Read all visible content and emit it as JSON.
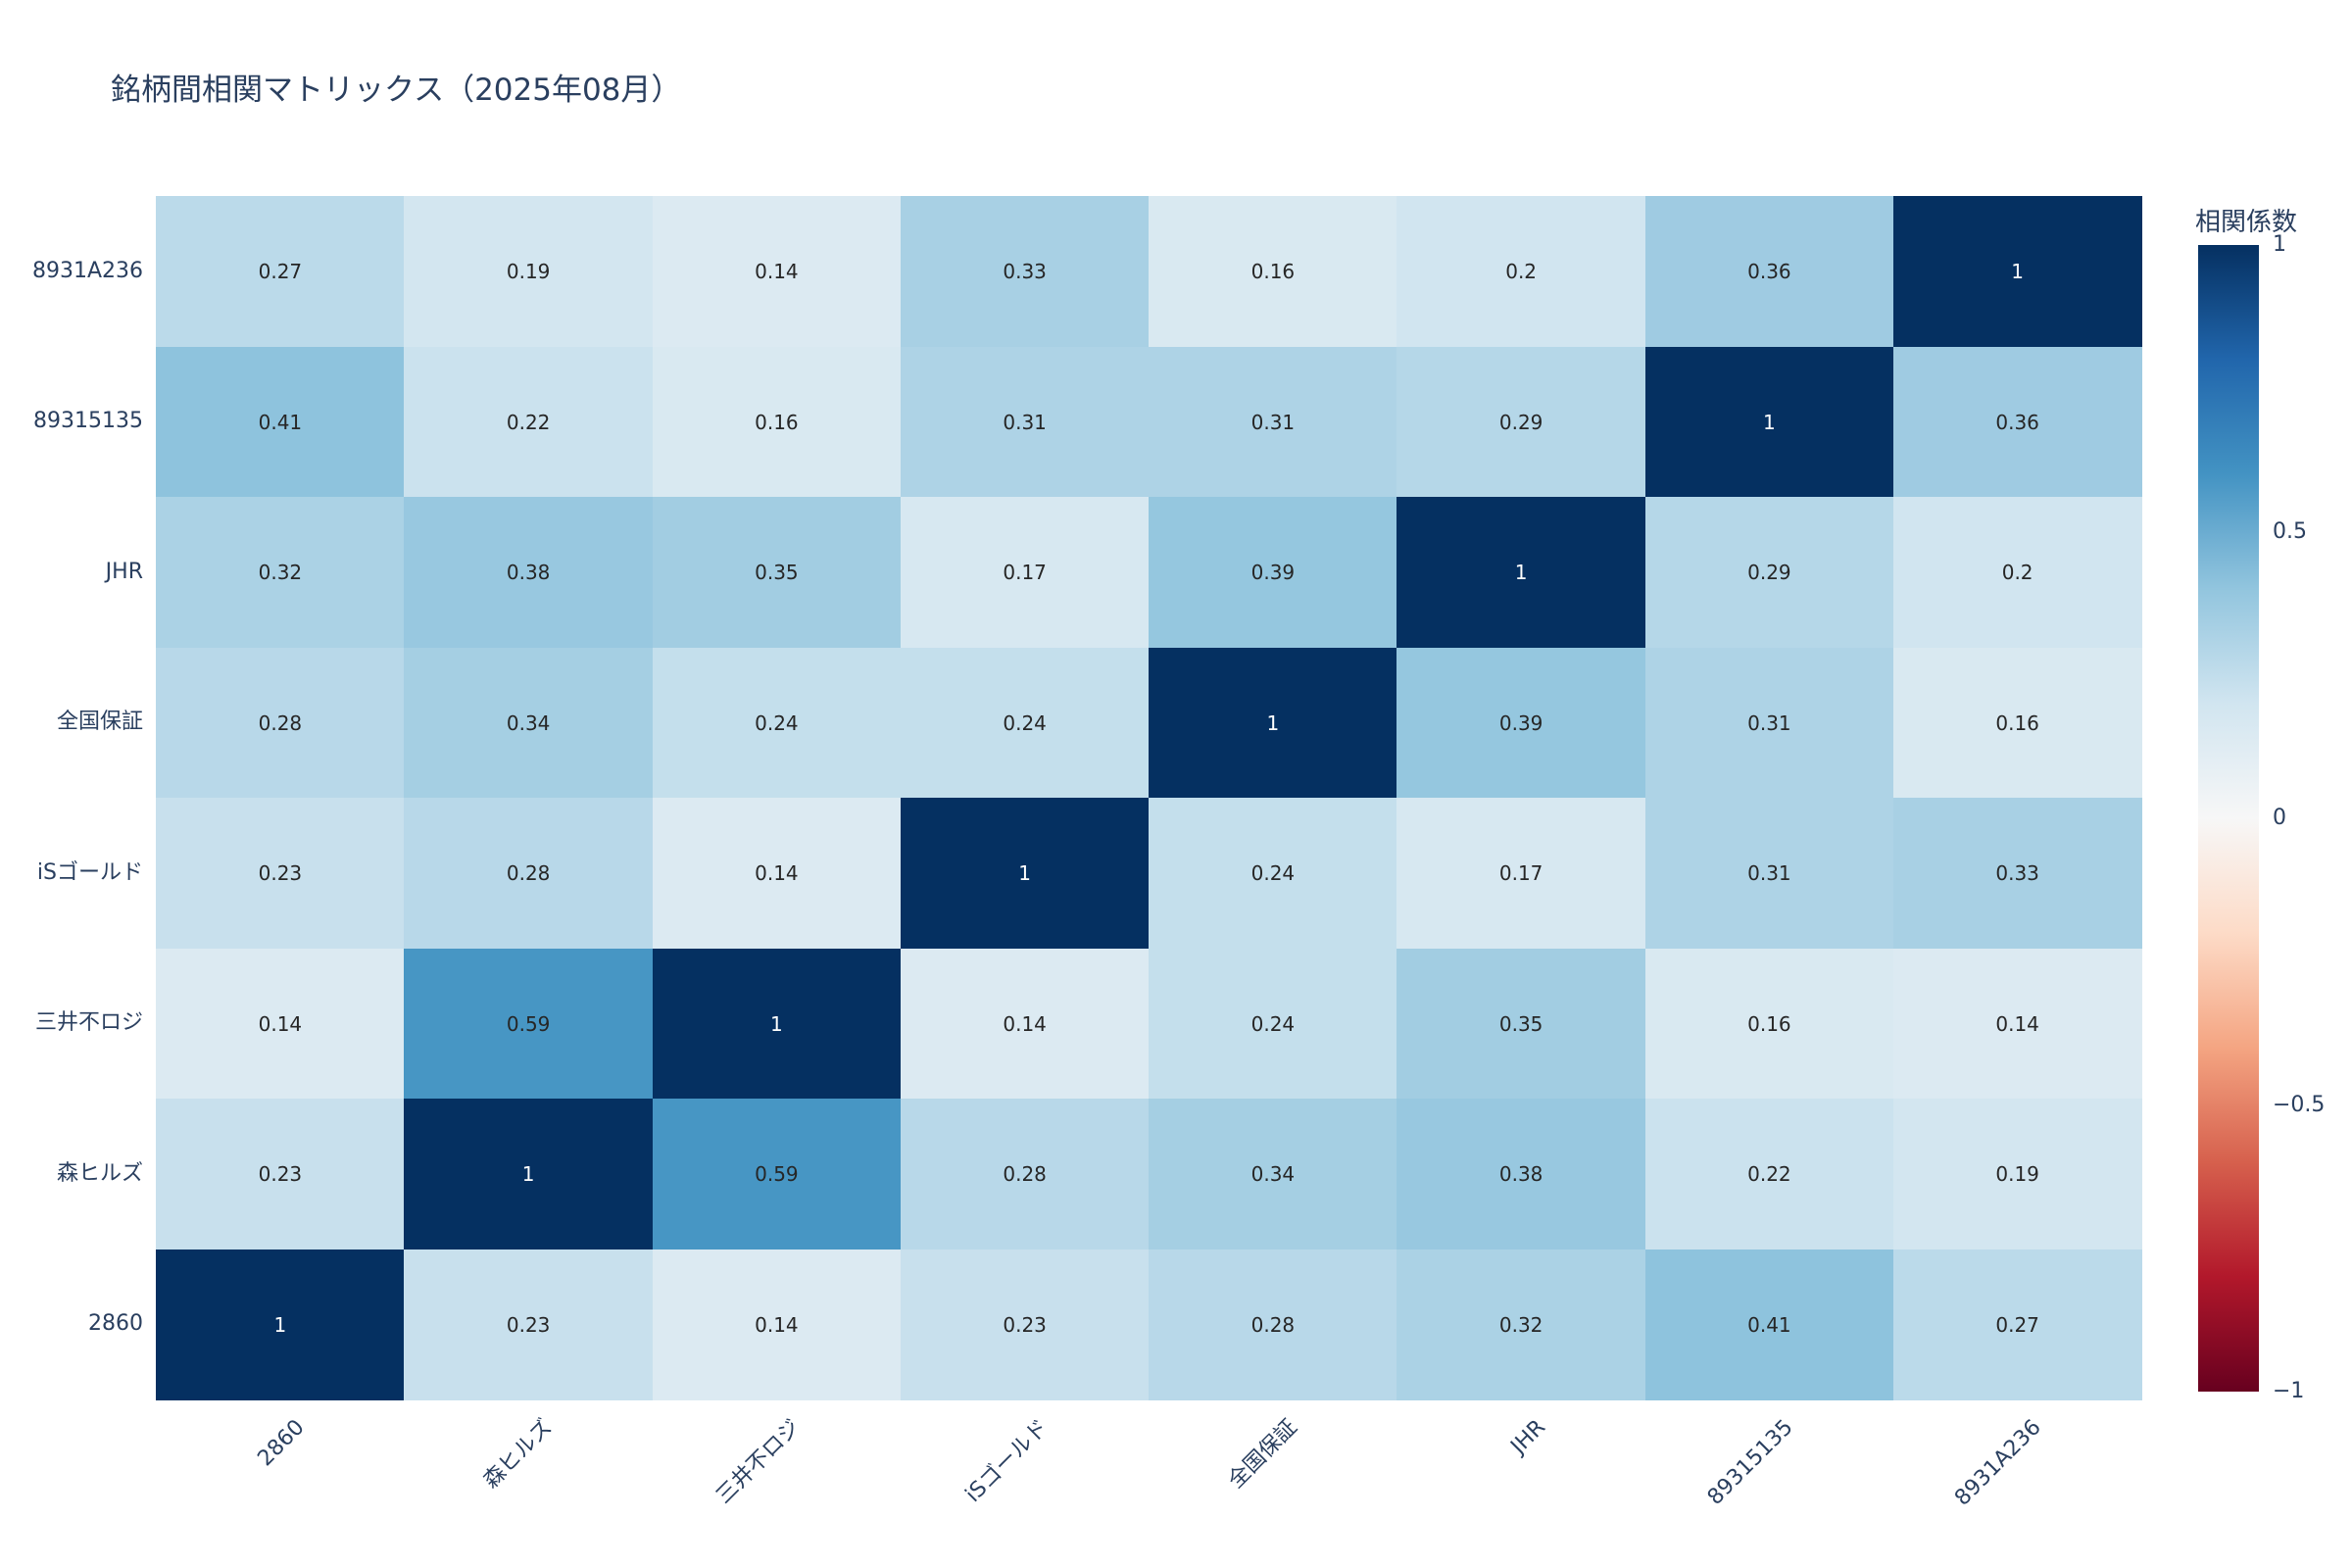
{
  "title": "銘柄間相関マトリックス（2025年08月）",
  "colors": {
    "title_text": "#2a3f5f",
    "axis_text": "#2a3f5f",
    "cell_text_dark": "#262626",
    "cell_text_light": "#ffffff",
    "background": "#ffffff"
  },
  "chart_data": {
    "type": "heatmap",
    "title": "銘柄間相関マトリックス（2025年08月）",
    "x_categories": [
      "2860",
      "森ヒルズ",
      "三井不ロジ",
      "iSゴールド",
      "全国保証",
      "JHR",
      "89315135",
      "8931A236"
    ],
    "y_categories_top_to_bottom": [
      "8931A236",
      "89315135",
      "JHR",
      "全国保証",
      "iSゴールド",
      "三井不ロジ",
      "森ヒルズ",
      "2860"
    ],
    "rows_top_to_bottom": [
      [
        0.27,
        0.19,
        0.14,
        0.33,
        0.16,
        0.2,
        0.36,
        1
      ],
      [
        0.41,
        0.22,
        0.16,
        0.31,
        0.31,
        0.29,
        1,
        0.36
      ],
      [
        0.32,
        0.38,
        0.35,
        0.17,
        0.39,
        1,
        0.29,
        0.2
      ],
      [
        0.28,
        0.34,
        0.24,
        0.24,
        1,
        0.39,
        0.31,
        0.16
      ],
      [
        0.23,
        0.28,
        0.14,
        1,
        0.24,
        0.17,
        0.31,
        0.33
      ],
      [
        0.14,
        0.59,
        1,
        0.14,
        0.24,
        0.35,
        0.16,
        0.14
      ],
      [
        0.23,
        1,
        0.59,
        0.28,
        0.34,
        0.38,
        0.22,
        0.19
      ],
      [
        1,
        0.23,
        0.14,
        0.23,
        0.28,
        0.32,
        0.41,
        0.27
      ]
    ],
    "zmin": -1,
    "zmax": 1,
    "grid": false,
    "legend_position": "right-colorbar",
    "colorscale_stops": [
      [
        0,
        "#67001f"
      ],
      [
        0.1,
        "#b2182b"
      ],
      [
        0.2,
        "#d6604d"
      ],
      [
        0.3,
        "#f4a582"
      ],
      [
        0.4,
        "#fddbc7"
      ],
      [
        0.5,
        "#f7f7f7"
      ],
      [
        0.6,
        "#d1e5f0"
      ],
      [
        0.7,
        "#92c5de"
      ],
      [
        0.8,
        "#4393c3"
      ],
      [
        0.9,
        "#2166ac"
      ],
      [
        1,
        "#053061"
      ]
    ],
    "colorbar": {
      "title": "相関係数",
      "tick_labels_top_to_bottom": [
        "1",
        "0.5",
        "0",
        "−0.5",
        "−1"
      ]
    }
  }
}
